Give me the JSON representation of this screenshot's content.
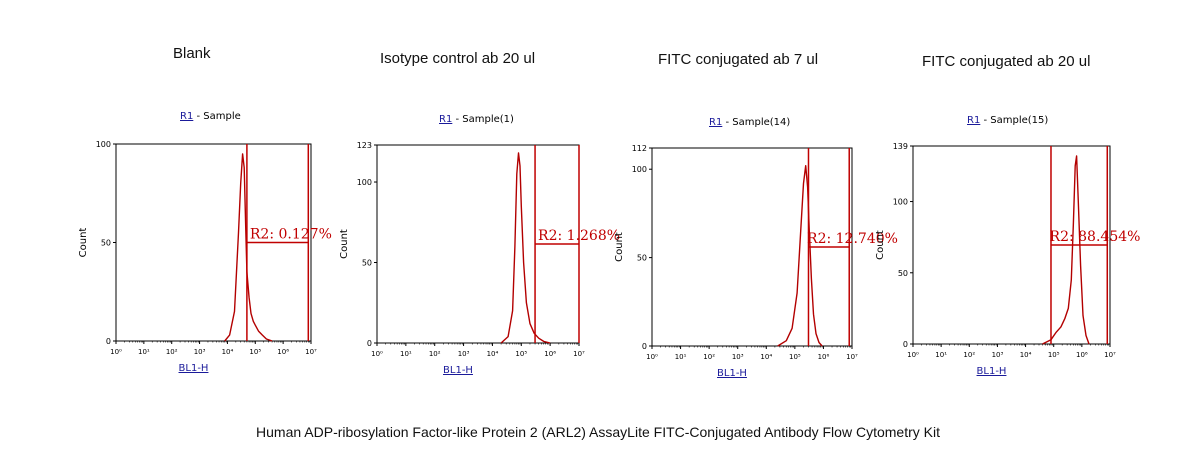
{
  "caption": "Human ADP-ribosylation Factor-like Protein 2 (ARL2) AssayLite FITC-Conjugated Antibody Flow Cytometry Kit",
  "colors": {
    "series": "#b30000",
    "gate": "#c00000",
    "link": "#1a1a9a",
    "axis": "#000000"
  },
  "chart_data": [
    {
      "type": "area",
      "title": "Blank",
      "gate_label": "R1",
      "sample_label": " - Sample",
      "xlabel": "BL1-H",
      "ylabel": "Count",
      "xscale": "log",
      "xlim": [
        1,
        10000000
      ],
      "ylim": [
        0,
        100
      ],
      "yticks": [
        0,
        50,
        100
      ],
      "ytick_labels": [
        "0",
        "50",
        "100"
      ],
      "xticks": [
        1,
        10,
        100,
        1000,
        10000,
        100000,
        1000000,
        10000000
      ],
      "xtick_labels": [
        "10⁰",
        "10¹",
        "10²",
        "10³",
        "10⁴",
        "10⁵",
        "10⁶",
        "10⁷"
      ],
      "region": {
        "name": "R2",
        "value": "0.127%",
        "x_start": 50000,
        "x_end": 8000000
      },
      "histogram": {
        "x": [
          8000,
          12000,
          18000,
          25000,
          30000,
          35000,
          40000,
          45000,
          50000,
          60000,
          70000,
          85000,
          100000,
          130000,
          180000,
          250000,
          400000
        ],
        "y": [
          0,
          3,
          15,
          55,
          80,
          95,
          88,
          60,
          35,
          22,
          14,
          10,
          8,
          5,
          3,
          1,
          0
        ]
      }
    },
    {
      "type": "area",
      "title": "Isotype control ab 20 ul",
      "gate_label": "R1",
      "sample_label": " - Sample(1)",
      "xlabel": "BL1-H",
      "ylabel": "Count",
      "xscale": "log",
      "xlim": [
        1,
        10000000
      ],
      "ylim": [
        0,
        123
      ],
      "yticks": [
        0,
        50,
        100,
        123
      ],
      "ytick_labels": [
        "0",
        "50",
        "100",
        "123"
      ],
      "xticks": [
        1,
        10,
        100,
        1000,
        10000,
        100000,
        1000000,
        10000000
      ],
      "xtick_labels": [
        "10⁰",
        "10¹",
        "10²",
        "10³",
        "10⁴",
        "10⁵",
        "10⁶",
        "10⁷"
      ],
      "region": {
        "name": "R2",
        "value": "1.268%",
        "x_start": 300000,
        "x_end": 10000000
      },
      "histogram": {
        "x": [
          20000,
          35000,
          50000,
          60000,
          70000,
          80000,
          90000,
          100000,
          120000,
          150000,
          200000,
          280000,
          400000,
          600000,
          1000000
        ],
        "y": [
          0,
          4,
          20,
          60,
          105,
          118,
          110,
          85,
          50,
          25,
          12,
          6,
          3,
          1,
          0
        ]
      }
    },
    {
      "type": "area",
      "title": "FITC conjugated ab 7 ul",
      "gate_label": "R1",
      "sample_label": " - Sample(14)",
      "xlabel": "BL1-H",
      "ylabel": "Count",
      "xscale": "log",
      "xlim": [
        1,
        10000000
      ],
      "ylim": [
        0,
        112
      ],
      "yticks": [
        0,
        50,
        100,
        112
      ],
      "ytick_labels": [
        "0",
        "50",
        "100",
        "112"
      ],
      "xticks": [
        1,
        10,
        100,
        1000,
        10000,
        100000,
        1000000,
        10000000
      ],
      "xtick_labels": [
        "10⁰",
        "10¹",
        "10²",
        "10³",
        "10⁴",
        "10⁵",
        "10⁶",
        "10⁷"
      ],
      "region": {
        "name": "R2",
        "value": "12.740%",
        "x_start": 300000,
        "x_end": 8000000
      },
      "histogram": {
        "x": [
          25000,
          50000,
          80000,
          120000,
          160000,
          200000,
          240000,
          280000,
          320000,
          380000,
          450000,
          550000,
          700000,
          900000
        ],
        "y": [
          0,
          3,
          10,
          30,
          65,
          92,
          102,
          90,
          65,
          38,
          18,
          7,
          2,
          0
        ]
      }
    },
    {
      "type": "area",
      "title": "FITC conjugated ab 20 ul",
      "gate_label": "R1",
      "sample_label": " - Sample(15)",
      "xlabel": "BL1-H",
      "ylabel": "Count",
      "xscale": "log",
      "xlim": [
        1,
        10000000
      ],
      "ylim": [
        0,
        139
      ],
      "yticks": [
        0,
        50,
        100,
        139
      ],
      "ytick_labels": [
        "0",
        "50",
        "100",
        "139"
      ],
      "xticks": [
        1,
        10,
        100,
        1000,
        10000,
        100000,
        1000000,
        10000000
      ],
      "xtick_labels": [
        "10⁰",
        "10¹",
        "10²",
        "10³",
        "10⁴",
        "10⁵",
        "10⁶",
        "10⁷"
      ],
      "region": {
        "name": "R2",
        "value": "88.454%",
        "x_start": 80000,
        "x_end": 8000000
      },
      "histogram": {
        "x": [
          40000,
          80000,
          120000,
          180000,
          250000,
          330000,
          420000,
          500000,
          580000,
          650000,
          750000,
          900000,
          1100000,
          1400000,
          1800000
        ],
        "y": [
          0,
          3,
          8,
          12,
          18,
          25,
          45,
          85,
          125,
          132,
          100,
          55,
          20,
          6,
          0
        ]
      }
    }
  ]
}
